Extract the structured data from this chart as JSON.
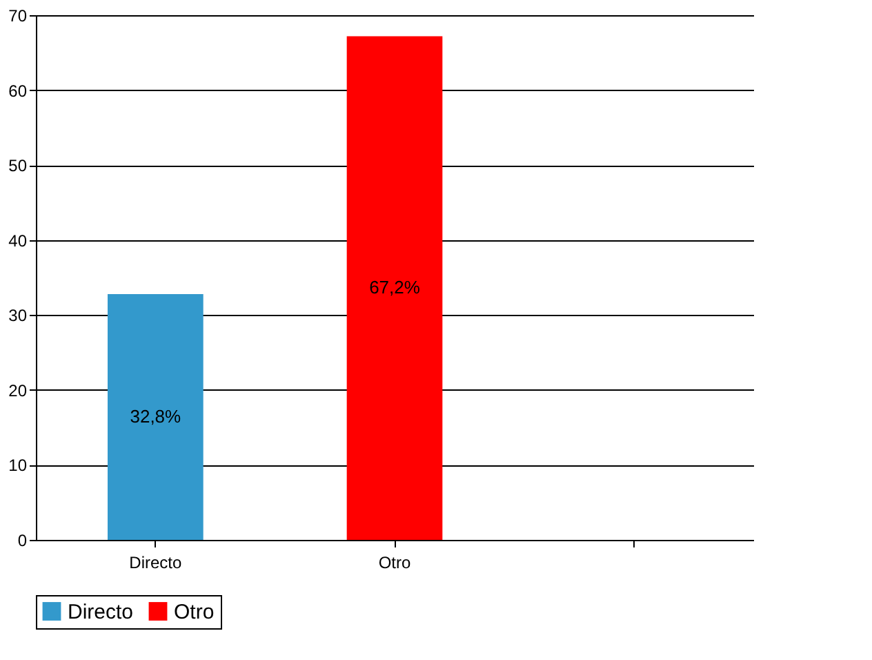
{
  "chart_data": {
    "type": "bar",
    "categories": [
      "Directo",
      "Otro",
      null
    ],
    "series": [
      {
        "name": "Directo",
        "color": "#3399cc",
        "values": [
          32.8,
          null,
          null
        ],
        "value_labels": [
          "32,8%",
          null,
          null
        ]
      },
      {
        "name": "Otro",
        "color": "#ff0000",
        "values": [
          null,
          67.2,
          null
        ],
        "value_labels": [
          null,
          "67,2%",
          null
        ]
      }
    ],
    "ylim": [
      0,
      70
    ],
    "yticks": [
      0,
      10,
      20,
      30,
      40,
      50,
      60,
      70
    ],
    "grid": "y",
    "legend": "bottom"
  }
}
